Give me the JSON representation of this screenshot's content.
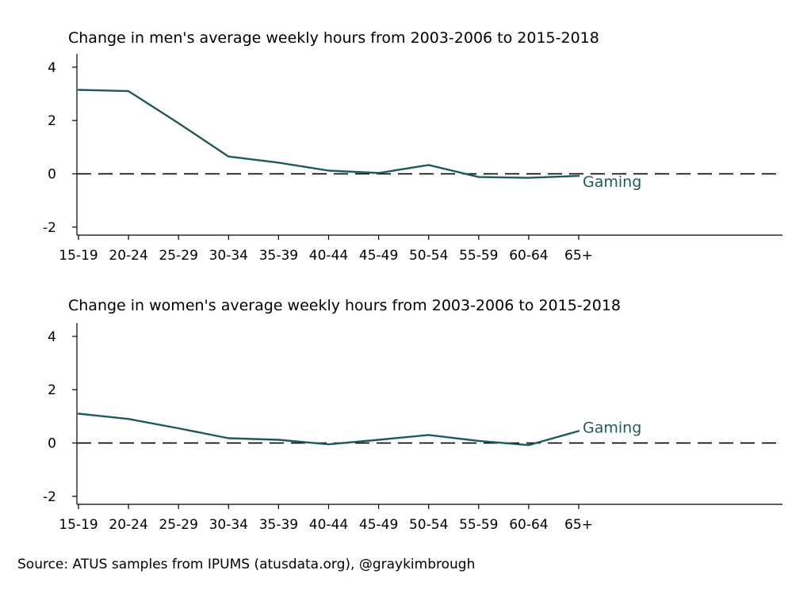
{
  "chart_data": [
    {
      "type": "line",
      "title": "Change in men's average weekly hours from 2003-2006 to 2015-2018",
      "categories": [
        "15-19",
        "20-24",
        "25-29",
        "30-34",
        "35-39",
        "40-44",
        "45-49",
        "50-54",
        "55-59",
        "60-64",
        "65+"
      ],
      "series": [
        {
          "name": "Gaming",
          "values": [
            3.15,
            3.1,
            1.9,
            0.65,
            0.42,
            0.12,
            0.03,
            0.33,
            -0.12,
            -0.15,
            -0.08
          ]
        }
      ],
      "yticks": [
        -2,
        0,
        2,
        4
      ],
      "ylim": [
        -2.3,
        4.5
      ],
      "reference_line": {
        "y": 0,
        "style": "dashed"
      },
      "xlabel": "",
      "ylabel": ""
    },
    {
      "type": "line",
      "title": "Change in women's average weekly hours from 2003-2006 to 2015-2018",
      "categories": [
        "15-19",
        "20-24",
        "25-29",
        "30-34",
        "35-39",
        "40-44",
        "45-49",
        "50-54",
        "55-59",
        "60-64",
        "65+"
      ],
      "series": [
        {
          "name": "Gaming",
          "values": [
            1.1,
            0.9,
            0.55,
            0.18,
            0.12,
            -0.05,
            0.12,
            0.3,
            0.08,
            -0.08,
            0.45
          ]
        }
      ],
      "yticks": [
        -2,
        0,
        2,
        4
      ],
      "ylim": [
        -2.3,
        4.5
      ],
      "reference_line": {
        "y": 0,
        "style": "dashed"
      },
      "xlabel": "",
      "ylabel": ""
    }
  ],
  "colors": {
    "series": "#1f5a5a",
    "label": "#1f5a5a",
    "axis": "#000000",
    "background": "#ffffff"
  },
  "source_note": "Source: ATUS samples from IPUMS (atusdata.org), @graykimbrough"
}
